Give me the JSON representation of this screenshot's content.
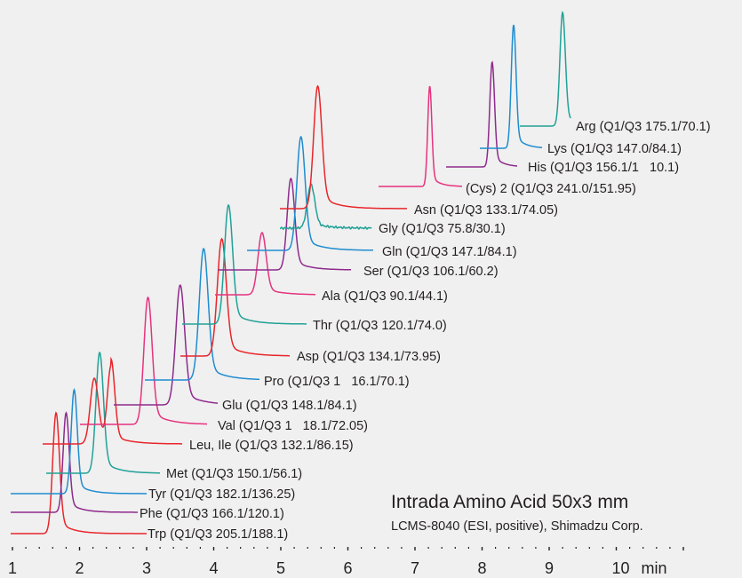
{
  "chart_data": {
    "type": "line",
    "title": "Intrada Amino Acid 50x3 mm",
    "subtitle": "LCMS-8040 (ESI, positive), Shimadzu Corp.",
    "xlabel": "min",
    "xlim": [
      1,
      11
    ],
    "x_ticks": [
      "1",
      "2",
      "3",
      "4",
      "5",
      "6",
      "7",
      "8",
      "9",
      "10"
    ],
    "grid": false,
    "colors": {
      "red": "#e8262b",
      "blue": "#1f8ccf",
      "purple": "#8e2a8c",
      "pink": "#e6337e",
      "teal": "#20a196"
    },
    "series": [
      {
        "name": "Trp (Q1/Q3 205.1/188.1)",
        "rt": 1.65,
        "color": "red",
        "width": 0.05
      },
      {
        "name": "Phe (Q1/Q3 166.1/120.1)",
        "rt": 1.8,
        "color": "purple",
        "width": 0.045
      },
      {
        "name": "Tyr (Q1/Q3 182.1/136.25)",
        "rt": 1.92,
        "color": "blue",
        "width": 0.045
      },
      {
        "name": "Met (Q1/Q3 150.1/56.1)",
        "rt": 2.3,
        "color": "teal",
        "width": 0.055
      },
      {
        "name": "Leu, Ile (Q1/Q3 132.1/86.15)",
        "rt": 2.22,
        "color": "red",
        "width": 0.06,
        "second_rt": 2.47
      },
      {
        "name": "Val (Q1/Q3 1   18.1/72.05)",
        "rt": 3.02,
        "color": "pink",
        "width": 0.06
      },
      {
        "name": "Glu (Q1/Q3 148.1/84.1)",
        "rt": 3.5,
        "color": "purple",
        "width": 0.065
      },
      {
        "name": "Pro (Q1/Q3 1   16.1/70.1)",
        "rt": 3.85,
        "color": "blue",
        "width": 0.065
      },
      {
        "name": "Asp (Q1/Q3 134.1/73.95)",
        "rt": 4.12,
        "color": "red",
        "width": 0.065
      },
      {
        "name": "Thr (Q1/Q3 120.1/74.0)",
        "rt": 4.22,
        "color": "teal",
        "width": 0.06
      },
      {
        "name": "Ala (Q1/Q3 90.1/44.1)",
        "rt": 4.72,
        "color": "pink",
        "width": 0.06
      },
      {
        "name": "Ser (Q1/Q3 106.1/60.2)",
        "rt": 5.15,
        "color": "purple",
        "width": 0.055
      },
      {
        "name": "Gln (Q1/Q3 147.1/84.1)",
        "rt": 5.3,
        "color": "blue",
        "width": 0.06
      },
      {
        "name": "Gly (Q1/Q3 75.8/30.1)",
        "rt": 5.45,
        "color": "teal",
        "width": 0.055
      },
      {
        "name": "Asn (Q1/Q3 133.1/74.05)",
        "rt": 5.55,
        "color": "red",
        "width": 0.06
      },
      {
        "name": "(Cys) 2 (Q1/Q3 241.0/151.95)",
        "rt": 7.22,
        "color": "pink",
        "width": 0.03
      },
      {
        "name": "His (Q1/Q3 156.1/1   10.1)",
        "rt": 8.15,
        "color": "purple",
        "width": 0.035
      },
      {
        "name": "Lys (Q1/Q3 147.0/84.1)",
        "rt": 8.47,
        "color": "blue",
        "width": 0.035
      },
      {
        "name": "Arg (Q1/Q3 175.1/70.1)",
        "rt": 9.2,
        "color": "teal",
        "width": 0.04
      }
    ]
  }
}
